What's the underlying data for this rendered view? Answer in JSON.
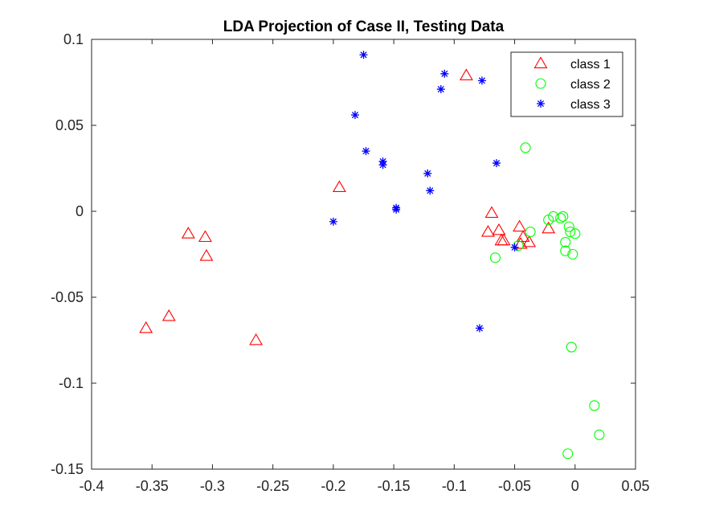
{
  "chart_data": {
    "type": "scatter",
    "title": "LDA Projection of Case II, Testing Data",
    "xlabel": "",
    "ylabel": "",
    "xlim": [
      -0.4,
      0.05
    ],
    "ylim": [
      -0.15,
      0.1
    ],
    "x_ticks": [
      -0.4,
      -0.35,
      -0.3,
      -0.25,
      -0.2,
      -0.15,
      -0.1,
      -0.05,
      0,
      0.05
    ],
    "x_tick_labels": [
      "-0.4",
      "-0.35",
      "-0.3",
      "-0.25",
      "-0.2",
      "-0.15",
      "-0.1",
      "-0.05",
      "0",
      "0.05"
    ],
    "y_ticks": [
      -0.15,
      -0.1,
      -0.05,
      0,
      0.05,
      0.1
    ],
    "y_tick_labels": [
      "-0.15",
      "-0.1",
      "-0.05",
      "0",
      "0.05",
      "0.1"
    ],
    "grid": false,
    "legend_position": "top-right",
    "series": [
      {
        "name": "class 1",
        "marker": "triangle",
        "color": "#ff0000",
        "points": [
          [
            -0.355,
            -0.068
          ],
          [
            -0.336,
            -0.061
          ],
          [
            -0.32,
            -0.013
          ],
          [
            -0.306,
            -0.015
          ],
          [
            -0.305,
            -0.026
          ],
          [
            -0.264,
            -0.075
          ],
          [
            -0.195,
            0.014
          ],
          [
            -0.09,
            0.079
          ],
          [
            -0.072,
            -0.012
          ],
          [
            -0.069,
            -0.001
          ],
          [
            -0.063,
            -0.011
          ],
          [
            -0.061,
            -0.017
          ],
          [
            -0.059,
            -0.017
          ],
          [
            -0.046,
            -0.009
          ],
          [
            -0.043,
            -0.015
          ],
          [
            -0.038,
            -0.018
          ],
          [
            -0.022,
            -0.01
          ],
          [
            -0.045,
            -0.019
          ]
        ]
      },
      {
        "name": "class 2",
        "marker": "circle",
        "color": "#00ff00",
        "points": [
          [
            -0.041,
            0.037
          ],
          [
            -0.037,
            -0.012
          ],
          [
            -0.047,
            -0.02
          ],
          [
            -0.066,
            -0.027
          ],
          [
            -0.022,
            -0.005
          ],
          [
            -0.018,
            -0.003
          ],
          [
            -0.012,
            -0.004
          ],
          [
            -0.01,
            -0.003
          ],
          [
            -0.005,
            -0.009
          ],
          [
            -0.004,
            -0.012
          ],
          [
            0,
            -0.013
          ],
          [
            -0.008,
            -0.018
          ],
          [
            -0.008,
            -0.023
          ],
          [
            -0.002,
            -0.025
          ],
          [
            -0.003,
            -0.079
          ],
          [
            0.016,
            -0.113
          ],
          [
            0.02,
            -0.13
          ],
          [
            -0.006,
            -0.141
          ]
        ]
      },
      {
        "name": "class 3",
        "marker": "asterisk",
        "color": "#0000ff",
        "points": [
          [
            -0.175,
            0.091
          ],
          [
            -0.108,
            0.08
          ],
          [
            -0.077,
            0.076
          ],
          [
            -0.111,
            0.071
          ],
          [
            -0.182,
            0.056
          ],
          [
            -0.173,
            0.035
          ],
          [
            -0.159,
            0.029
          ],
          [
            -0.159,
            0.027
          ],
          [
            -0.065,
            0.028
          ],
          [
            -0.122,
            0.022
          ],
          [
            -0.12,
            0.012
          ],
          [
            -0.148,
            0.002
          ],
          [
            -0.148,
            0.001
          ],
          [
            -0.2,
            -0.006
          ],
          [
            -0.05,
            -0.021
          ],
          [
            -0.079,
            -0.068
          ]
        ]
      }
    ]
  }
}
